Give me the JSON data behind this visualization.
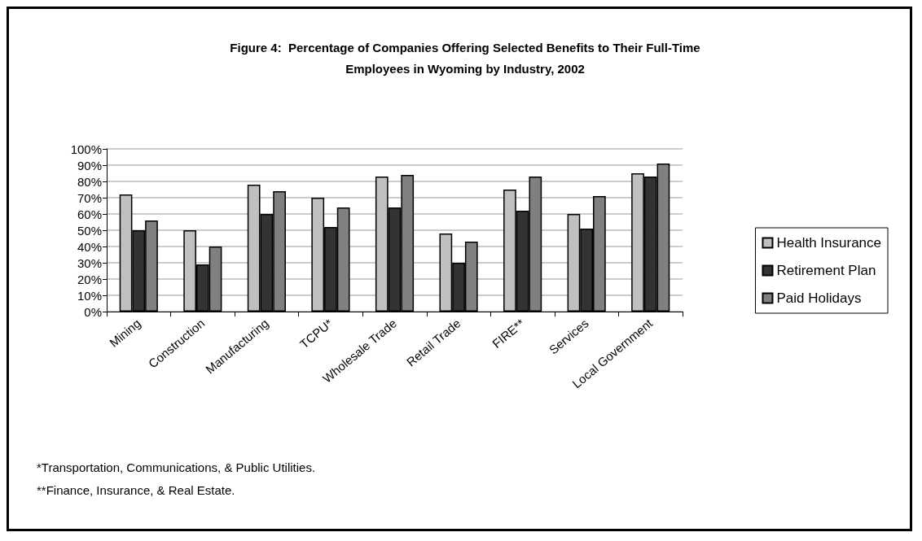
{
  "chart_data": {
    "type": "bar",
    "title": "Figure 4:  Percentage of Companies Offering Selected Benefits to Their Full-Time\nEmployees in Wyoming by Industry, 2002",
    "categories": [
      "Mining",
      "Construction",
      "Manufacturing",
      "TCPU*",
      "Wholesale Trade",
      "Retail Trade",
      "FIRE**",
      "Services",
      "Local Government"
    ],
    "series": [
      {
        "name": "Health Insurance",
        "color": "#c0c0c0",
        "values": [
          72,
          50,
          78,
          70,
          83,
          48,
          75,
          60,
          85
        ]
      },
      {
        "name": "Retirement Plan",
        "color": "#333333",
        "values": [
          50,
          29,
          60,
          52,
          64,
          30,
          62,
          51,
          83
        ]
      },
      {
        "name": "Paid Holidays",
        "color": "#808080",
        "values": [
          56,
          40,
          74,
          64,
          84,
          43,
          83,
          71,
          91
        ]
      }
    ],
    "ylim": [
      0,
      100
    ],
    "yticks": [
      {
        "value": 0,
        "label": "0%"
      },
      {
        "value": 10,
        "label": "10%"
      },
      {
        "value": 20,
        "label": "20%"
      },
      {
        "value": 30,
        "label": "30%"
      },
      {
        "value": 40,
        "label": "40%"
      },
      {
        "value": 50,
        "label": "50%"
      },
      {
        "value": 60,
        "label": "60%"
      },
      {
        "value": 70,
        "label": "70%"
      },
      {
        "value": 80,
        "label": "80%"
      },
      {
        "value": 90,
        "label": "90%"
      },
      {
        "value": 100,
        "label": "100%"
      }
    ],
    "grid": "y",
    "legend": "right",
    "annotations": [
      "*Transportation, Communications, & Public Utilities.",
      "**Finance, Insurance, & Real Estate."
    ]
  }
}
